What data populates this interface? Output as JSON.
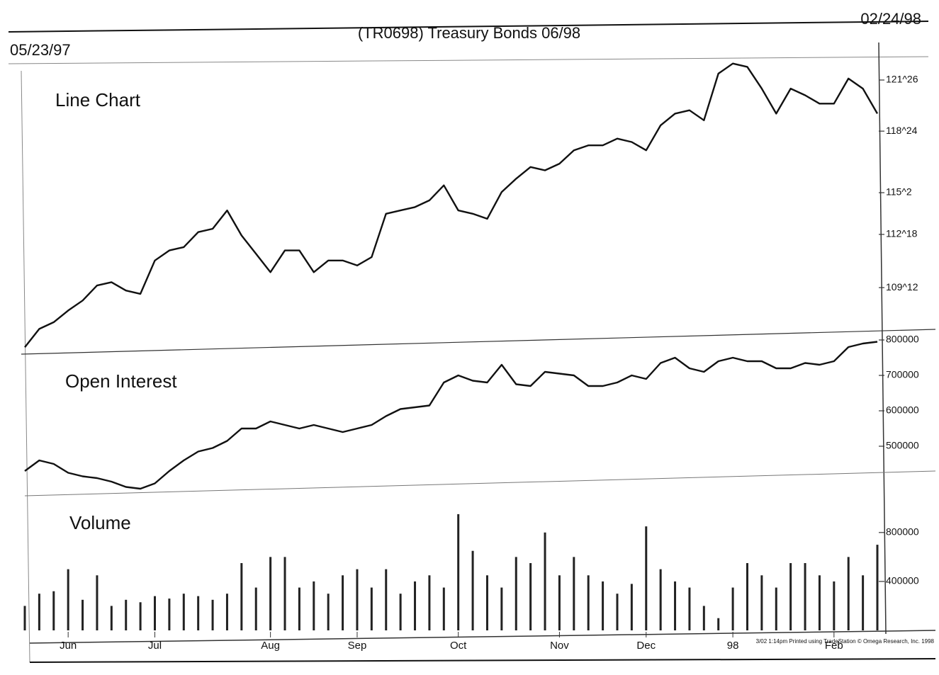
{
  "header": {
    "start_date": "05/23/97",
    "title": "(TR0698) Treasury Bonds 06/98",
    "end_date": "02/24/98"
  },
  "footer": "3/02 1:14pm Printed using TradeStation © Omega Research, Inc. 1998",
  "chart_data": [
    {
      "type": "line",
      "title": "Line Chart",
      "color": "#111111",
      "values": [
        105.8,
        106.9,
        107.3,
        108.0,
        108.6,
        109.5,
        109.7,
        109.2,
        109.0,
        111.0,
        111.6,
        111.8,
        112.7,
        112.9,
        114.0,
        112.5,
        111.4,
        110.3,
        111.6,
        111.6,
        110.3,
        111.0,
        111.0,
        110.7,
        111.2,
        113.8,
        114.0,
        114.2,
        114.6,
        115.5,
        114.0,
        113.8,
        113.5,
        115.1,
        115.9,
        116.6,
        116.4,
        116.8,
        117.6,
        117.9,
        117.9,
        118.3,
        118.1,
        117.6,
        119.1,
        119.8,
        120.0,
        119.4,
        122.2,
        122.8,
        122.6,
        121.3,
        119.8,
        121.3,
        120.9,
        120.4,
        120.4,
        121.9,
        121.3,
        119.8
      ],
      "ylim": [
        105.6,
        123.0
      ],
      "yticks": [
        {
          "value": 109.375,
          "label": "109^12"
        },
        {
          "value": 112.5625,
          "label": "112^18"
        },
        {
          "value": 115.0625,
          "label": "115^2"
        },
        {
          "value": 118.75,
          "label": "118^24"
        },
        {
          "value": 121.8125,
          "label": "121^26"
        }
      ]
    },
    {
      "type": "line",
      "title": "Open Interest",
      "color": "#111111",
      "values": [
        430000,
        460000,
        450000,
        425000,
        415000,
        410000,
        400000,
        385000,
        380000,
        395000,
        430000,
        460000,
        485000,
        495000,
        515000,
        550000,
        550000,
        570000,
        560000,
        550000,
        560000,
        550000,
        540000,
        550000,
        560000,
        585000,
        605000,
        610000,
        615000,
        680000,
        700000,
        685000,
        680000,
        730000,
        675000,
        670000,
        710000,
        705000,
        700000,
        670000,
        670000,
        680000,
        700000,
        690000,
        735000,
        750000,
        720000,
        710000,
        740000,
        750000,
        740000,
        740000,
        720000,
        720000,
        735000,
        730000,
        740000,
        780000,
        790000,
        795000
      ],
      "ylim": [
        430000,
        830000
      ],
      "yticks": [
        500000,
        600000,
        700000,
        800000
      ]
    },
    {
      "type": "bar",
      "title": "Volume",
      "color": "#222222",
      "categories": [
        null,
        null,
        null,
        "Jun",
        null,
        null,
        null,
        null,
        null,
        "Jul",
        null,
        null,
        null,
        null,
        null,
        null,
        null,
        "Aug",
        null,
        null,
        null,
        null,
        null,
        "Sep",
        null,
        null,
        null,
        null,
        null,
        null,
        "Oct",
        null,
        null,
        null,
        null,
        null,
        null,
        "Nov",
        null,
        null,
        null,
        null,
        null,
        "Dec",
        null,
        null,
        null,
        null,
        null,
        "98",
        null,
        null,
        null,
        null,
        null,
        null,
        "Feb",
        null,
        null,
        null
      ],
      "values": [
        200000,
        300000,
        320000,
        500000,
        250000,
        450000,
        200000,
        250000,
        230000,
        280000,
        260000,
        300000,
        280000,
        250000,
        300000,
        550000,
        350000,
        600000,
        600000,
        350000,
        400000,
        300000,
        450000,
        500000,
        350000,
        500000,
        300000,
        400000,
        450000,
        350000,
        950000,
        650000,
        450000,
        350000,
        600000,
        550000,
        800000,
        450000,
        600000,
        450000,
        400000,
        300000,
        380000,
        850000,
        500000,
        400000,
        350000,
        200000,
        100000,
        350000,
        550000,
        450000,
        350000,
        550000,
        550000,
        450000,
        400000,
        600000,
        450000,
        700000
      ],
      "ylim": [
        0,
        1100000
      ],
      "yticks": [
        400000,
        800000
      ]
    }
  ]
}
